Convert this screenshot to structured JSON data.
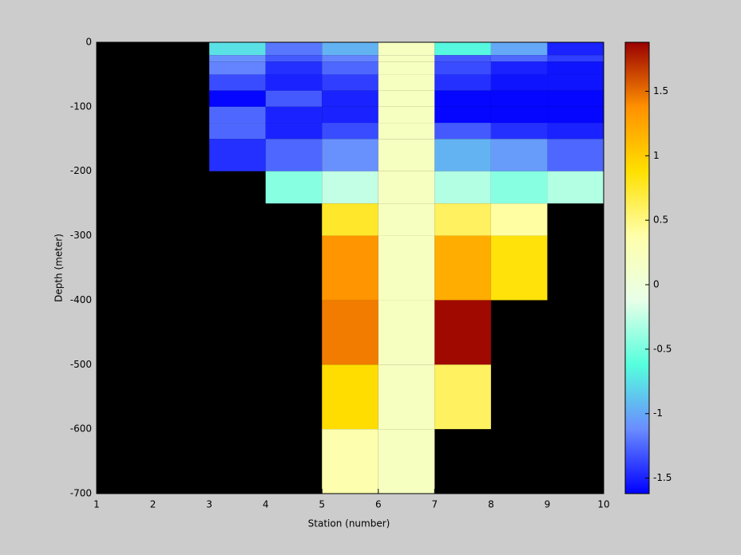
{
  "chart_data": {
    "type": "heatmap",
    "xlabel": "Station (number)",
    "ylabel": "Depth (meter)",
    "x_edges": [
      3,
      4,
      5,
      6,
      7,
      8,
      9,
      10
    ],
    "y_edges": [
      0,
      -20,
      -30,
      -50,
      -75,
      -100,
      -125,
      -150,
      -200,
      -250,
      -300,
      -400,
      -500,
      -600,
      -700
    ],
    "values": [
      [
        -0.75,
        -1.1,
        -1.15,
        -1.35,
        -1.6,
        -1.25,
        -1.25,
        -1.45,
        null,
        null,
        null,
        null,
        null,
        null
      ],
      [
        -1.2,
        -1.3,
        -1.45,
        -1.5,
        -1.3,
        -1.5,
        -1.5,
        -1.25,
        -0.45,
        null,
        null,
        null,
        null,
        null
      ],
      [
        -0.95,
        -1.15,
        -1.25,
        -1.4,
        -1.5,
        -1.5,
        -1.35,
        -1.1,
        -0.25,
        0.75,
        1.35,
        1.45,
        0.9,
        0.35
      ],
      [
        0.2,
        0.2,
        0.2,
        0.2,
        0.2,
        0.2,
        0.2,
        0.2,
        0.2,
        0.2,
        0.2,
        0.2,
        0.2,
        0.2
      ],
      [
        -0.65,
        -1.3,
        -1.35,
        -1.45,
        -1.6,
        -1.6,
        -1.3,
        -0.95,
        -0.3,
        0.6,
        1.2,
        1.85,
        0.6,
        null
      ],
      [
        -1.0,
        -1.25,
        -1.5,
        -1.55,
        -1.6,
        -1.6,
        -1.45,
        -1.05,
        -0.45,
        0.4,
        0.85,
        null,
        null,
        null
      ],
      [
        -1.5,
        -1.4,
        -1.55,
        -1.55,
        -1.6,
        -1.6,
        -1.5,
        -1.25,
        -0.3,
        null,
        null,
        null,
        null,
        null
      ]
    ],
    "missing_color": "#000000",
    "colormap": [
      "#0000ff",
      "#6a8cff",
      "#55ffdd",
      "#e8ffe8",
      "#ffffaa",
      "#ffe000",
      "#ff9000",
      "#990000"
    ],
    "clim": [
      -1.62,
      1.88
    ],
    "cticks": [
      -1.5,
      -1,
      -0.5,
      0,
      0.5,
      1,
      1.5
    ],
    "xlim": [
      1,
      10
    ],
    "xticks": [
      1,
      2,
      3,
      4,
      5,
      6,
      7,
      8,
      9,
      10
    ],
    "ylim": [
      -700,
      0
    ],
    "yticks": [
      0,
      -100,
      -200,
      -300,
      -400,
      -500,
      -600,
      -700
    ]
  }
}
